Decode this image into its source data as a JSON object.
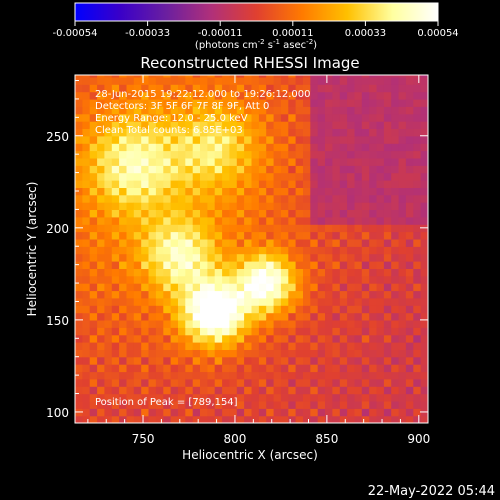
{
  "chart_data": {
    "type": "heatmap",
    "title": "Reconstructed RHESSI Image",
    "xlabel": "Heliocentric X (arcsec)",
    "ylabel": "Heliocentric Y (arcsec)",
    "xlim": [
      713,
      905
    ],
    "ylim": [
      94,
      283
    ],
    "xticks": [
      750,
      800,
      850,
      900
    ],
    "yticks": [
      100,
      150,
      200,
      250
    ],
    "colorbar": {
      "range": [
        -0.00054,
        0.00054
      ],
      "ticks": [
        "-0.00054",
        "-0.00033",
        "-0.00011",
        "0.00011",
        "0.00033",
        "0.00054"
      ],
      "unit_prefix": "(photons cm",
      "unit_exp1": "-2",
      "unit_mid": " s",
      "unit_exp2": "-1",
      "unit_mid2": " asec",
      "unit_exp3": "-2",
      "unit_suffix": ")",
      "colors": [
        "#0000ff",
        "#3a00c8",
        "#6a1fa0",
        "#b0307a",
        "#e04030",
        "#ff7a00",
        "#ffc000",
        "#ffffa0",
        "#ffffff"
      ]
    },
    "annotations": [
      "28-Jun-2015 19:22:12.000 to 19:26:12.000",
      "Detectors: 3F 5F 6F 7F 8F 9F, Att 0",
      "Energy Range: 12.0 - 25.0 keV",
      "Clean     Total counts: 6.85E+03"
    ],
    "peak_label": "Position of Peak = [789,154]",
    "peak": [
      789,
      154
    ],
    "sources": [
      {
        "x": 789,
        "y": 154,
        "amp": 1.0,
        "sigma": 12
      },
      {
        "x": 817,
        "y": 170,
        "amp": 0.85,
        "sigma": 11
      },
      {
        "x": 770,
        "y": 185,
        "amp": 0.55,
        "sigma": 14
      },
      {
        "x": 745,
        "y": 235,
        "amp": 0.5,
        "sigma": 18
      },
      {
        "x": 790,
        "y": 245,
        "amp": 0.4,
        "sigma": 16
      }
    ]
  },
  "timestamp": "22-May-2022 05:44"
}
